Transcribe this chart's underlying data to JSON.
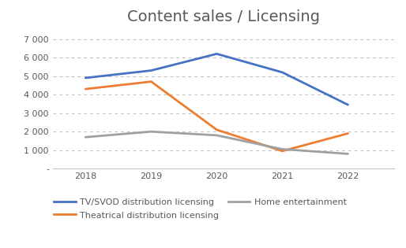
{
  "title": "Content sales / Licensing",
  "years": [
    2018,
    2019,
    2020,
    2021,
    2022
  ],
  "series": [
    {
      "label": "TV/SVOD distribution licensing",
      "values": [
        4900,
        5300,
        6200,
        5200,
        3450
      ],
      "color": "#4472C4",
      "linewidth": 2
    },
    {
      "label": "Theatrical distribution licensing",
      "values": [
        4300,
        4700,
        2100,
        950,
        1900
      ],
      "color": "#ED7D31",
      "linewidth": 2
    },
    {
      "label": "Home entertainment",
      "values": [
        1700,
        2000,
        1800,
        1050,
        800
      ],
      "color": "#A0A0A0",
      "linewidth": 2
    }
  ],
  "ylim": [
    0,
    7500
  ],
  "yticks": [
    0,
    1000,
    2000,
    3000,
    4000,
    5000,
    6000,
    7000
  ],
  "ytick_labels": [
    "-",
    "1 000",
    "2 000",
    "3 000",
    "4 000",
    "5 000",
    "6 000",
    "7 000"
  ],
  "background_color": "#ffffff",
  "grid_color": "#C0C0C0",
  "title_fontsize": 14,
  "title_color": "#595959",
  "tick_fontsize": 8,
  "legend_fontsize": 8
}
